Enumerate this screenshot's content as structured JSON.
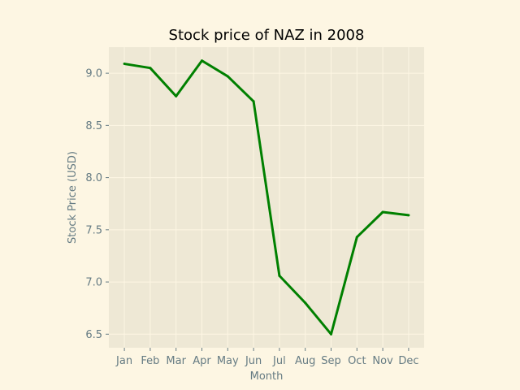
{
  "chart_data": {
    "type": "line",
    "title": "Stock price of NAZ in 2008",
    "xlabel": "Month",
    "ylabel": "Stock Price (USD)",
    "categories": [
      "Jan",
      "Feb",
      "Mar",
      "Apr",
      "May",
      "Jun",
      "Jul",
      "Aug",
      "Sep",
      "Oct",
      "Nov",
      "Dec"
    ],
    "series": [
      {
        "values": [
          9.09,
          9.05,
          8.78,
          9.12,
          8.97,
          8.73,
          7.06,
          6.8,
          6.5,
          7.43,
          7.67,
          7.64
        ]
      }
    ],
    "ylim": [
      6.37,
      9.25
    ],
    "yticks": [
      "6.5",
      "7.0",
      "7.5",
      "8.0",
      "8.5",
      "9.0"
    ],
    "grid": true,
    "colors": {
      "page_background": "#fdf6e3",
      "plot_background": "#eee8d5",
      "grid": "#fdf6e3",
      "line": "#008000",
      "tick_text": "#657b83"
    }
  }
}
